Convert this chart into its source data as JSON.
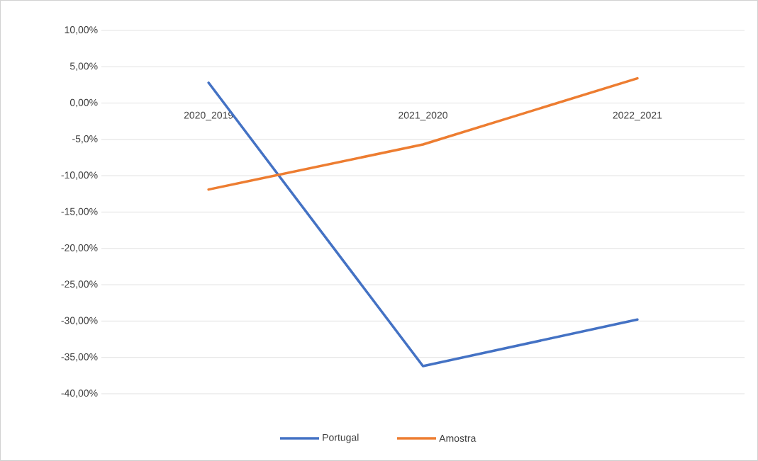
{
  "chart_data": {
    "type": "line",
    "categories": [
      "2020_2019",
      "2021_2020",
      "2022_2021"
    ],
    "series": [
      {
        "name": "Portugal",
        "color": "#4472c4",
        "values": [
          2.8,
          -36.2,
          -29.8
        ]
      },
      {
        "name": "Amostra",
        "color": "#ed7d31",
        "values": [
          -11.9,
          -5.7,
          3.4
        ]
      }
    ],
    "ylim": [
      -40,
      10
    ],
    "yticks": [
      {
        "value": 10,
        "label": "10,00%"
      },
      {
        "value": 5,
        "label": "5,00%"
      },
      {
        "value": 0,
        "label": "0,00%"
      },
      {
        "value": -5,
        "label": "-5,0%"
      },
      {
        "value": -10,
        "label": "-10,00%"
      },
      {
        "value": -15,
        "label": "-15,00%"
      },
      {
        "value": -20,
        "label": "-20,00%"
      },
      {
        "value": -25,
        "label": "-25,00%"
      },
      {
        "value": -30,
        "label": "-30,00%"
      },
      {
        "value": -35,
        "label": "-35,00%"
      },
      {
        "value": -40,
        "label": "-40,00%"
      }
    ],
    "grid": "y",
    "legend": "bottom",
    "marker": "none",
    "line_style": "solid"
  }
}
